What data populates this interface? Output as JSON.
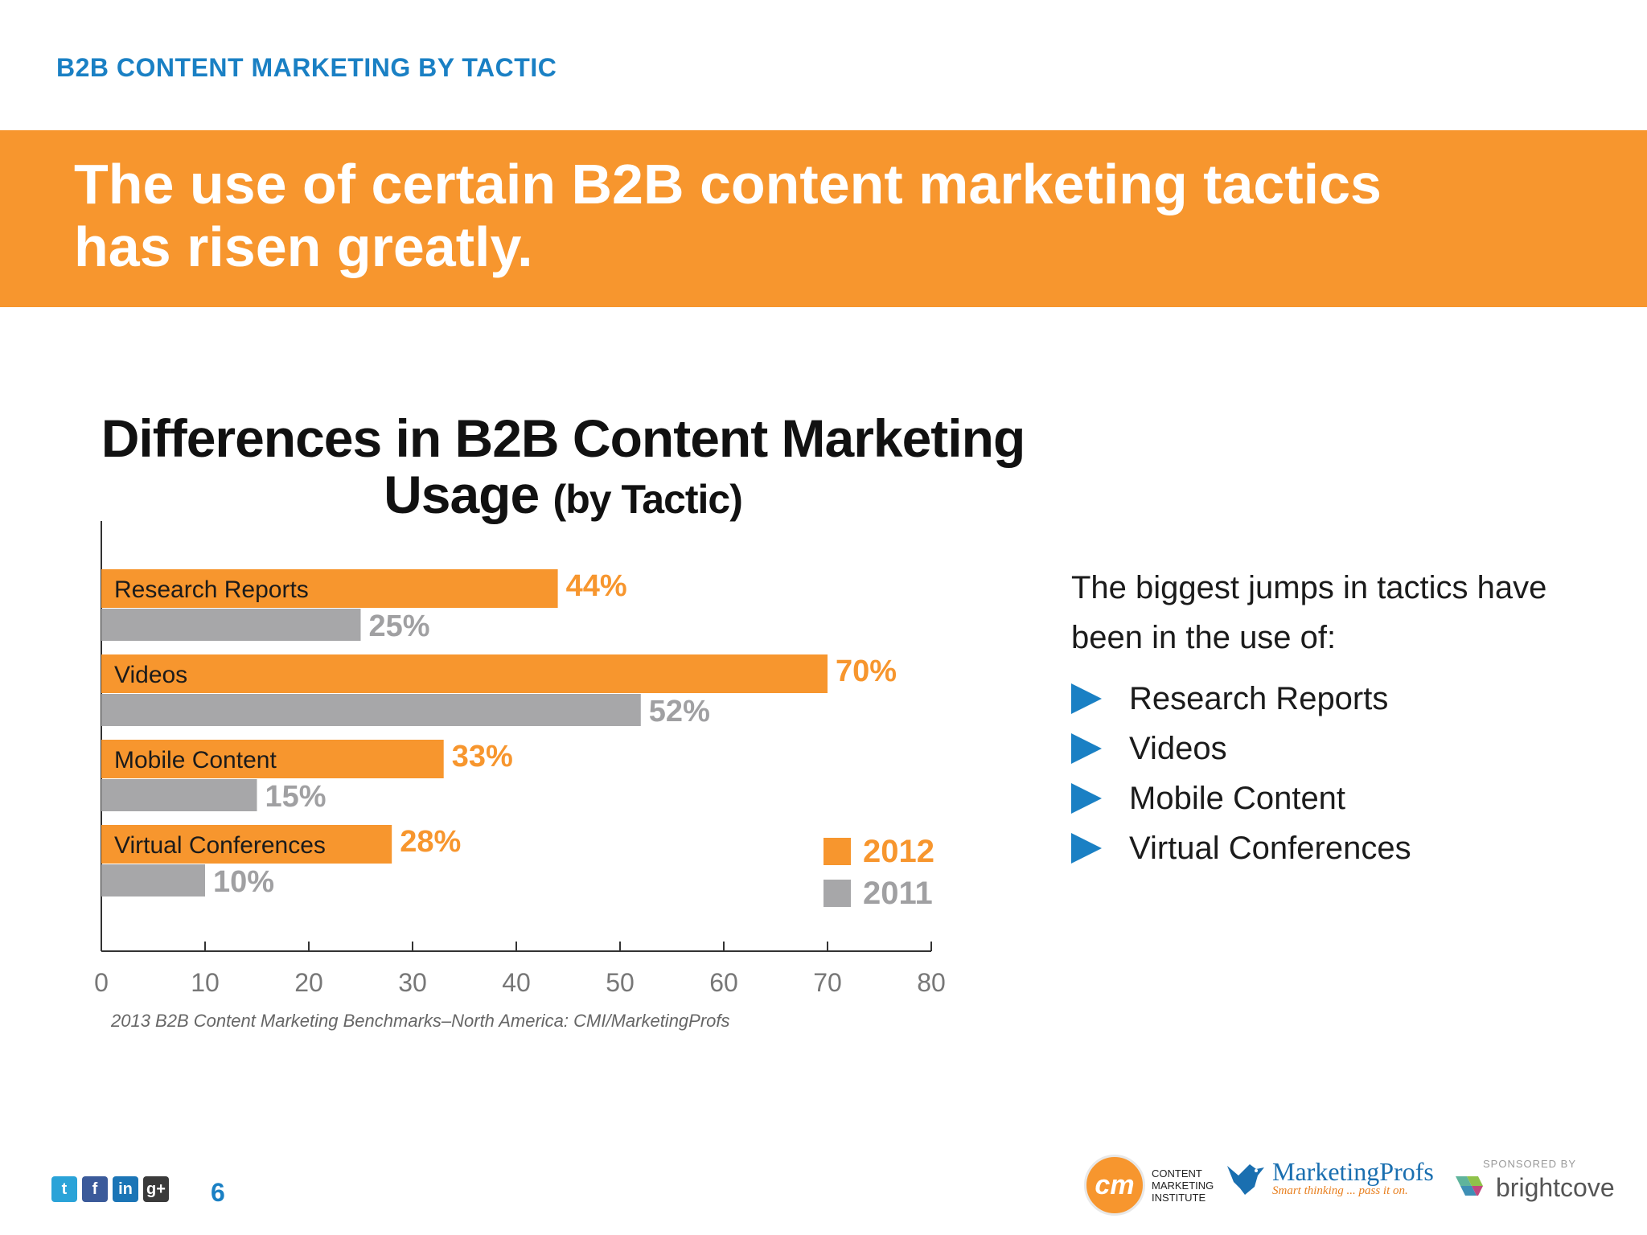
{
  "header": {
    "eyebrow": "B2B CONTENT MARKETING BY TACTIC",
    "headline_line1": "The use of certain B2B content marketing tactics",
    "headline_line2": "has risen greatly."
  },
  "chart_data": {
    "type": "bar",
    "orientation": "horizontal",
    "title_line1": "Differences in B2B Content Marketing",
    "title_main": "Usage",
    "title_sub": "(by Tactic)",
    "categories": [
      "Research Reports",
      "Videos",
      "Mobile Content",
      "Virtual Conferences"
    ],
    "series": [
      {
        "name": "2012",
        "values": [
          44,
          70,
          33,
          28
        ],
        "color": "#f7962e"
      },
      {
        "name": "2011",
        "values": [
          25,
          52,
          15,
          10
        ],
        "color": "#a7a7a9"
      }
    ],
    "value_suffix": "%",
    "xlim": [
      0,
      80
    ],
    "xticks": [
      0,
      10,
      20,
      30,
      40,
      50,
      60,
      70,
      80
    ],
    "legend_position": "bottom-right",
    "grid": false,
    "source": "2013 B2B Content Marketing Benchmarks–North America: CMI/MarketingProfs"
  },
  "callout": {
    "intro": "The biggest jumps in tactics have been in the use of:",
    "items": [
      "Research Reports",
      "Videos",
      "Mobile Content",
      "Virtual Conferences"
    ],
    "bullet_color": "#1a80c4"
  },
  "footer": {
    "social_icons": [
      {
        "name": "twitter-icon",
        "glyph": "t",
        "color": "#2aa3d8"
      },
      {
        "name": "facebook-icon",
        "glyph": "f",
        "color": "#3b5a9a"
      },
      {
        "name": "linkedin-icon",
        "glyph": "in",
        "color": "#1b75b6"
      },
      {
        "name": "google-plus-icon",
        "glyph": "g+",
        "color": "#3a3a3a"
      }
    ],
    "page_number": "6",
    "cmi_mark": "cm",
    "cmi_line1": "CONTENT",
    "cmi_line2": "MARKETING",
    "cmi_line3": "INSTITUTE",
    "mp_name": "MarketingProfs",
    "mp_tagline": "Smart thinking ... pass it on.",
    "sponsored_by": "SPONSORED BY",
    "brightcove": "brightcove"
  }
}
